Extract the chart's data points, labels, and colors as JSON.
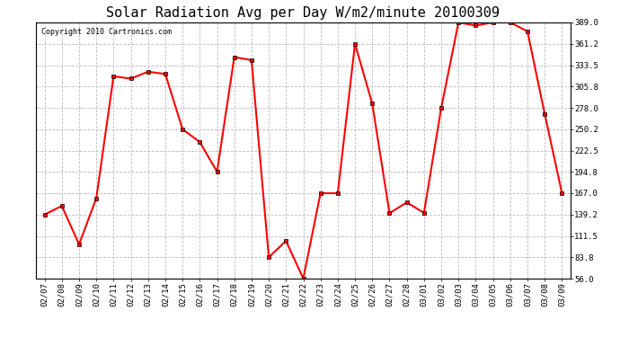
{
  "title": "Solar Radiation Avg per Day W/m2/minute 20100309",
  "copyright": "Copyright 2010 Cartronics.com",
  "dates": [
    "02/07",
    "02/08",
    "02/09",
    "02/10",
    "02/11",
    "02/12",
    "02/13",
    "02/14",
    "02/15",
    "02/16",
    "02/17",
    "02/18",
    "02/19",
    "02/20",
    "02/21",
    "02/22",
    "02/23",
    "02/24",
    "02/25",
    "02/26",
    "02/27",
    "02/28",
    "03/01",
    "03/02",
    "03/03",
    "03/04",
    "03/05",
    "03/06",
    "03/07",
    "03/08",
    "03/09"
  ],
  "values": [
    139.2,
    150.5,
    100.5,
    160.5,
    319.0,
    316.0,
    325.0,
    322.0,
    250.2,
    233.5,
    195.0,
    344.0,
    340.0,
    83.8,
    105.0,
    56.0,
    167.0,
    167.0,
    361.2,
    283.5,
    141.0,
    155.0,
    141.5,
    278.0,
    389.0,
    385.0,
    389.0,
    389.0,
    377.5,
    270.0,
    167.0
  ],
  "ylim_min": 56.0,
  "ylim_max": 389.0,
  "yticks": [
    56.0,
    83.8,
    111.5,
    139.2,
    167.0,
    194.8,
    222.5,
    250.2,
    278.0,
    305.8,
    333.5,
    361.2,
    389.0
  ],
  "line_color": "red",
  "marker": "s",
  "marker_size": 3,
  "bg_color": "white",
  "grid_color": "#bbbbbb",
  "title_fontsize": 11,
  "copyright_fontsize": 6
}
